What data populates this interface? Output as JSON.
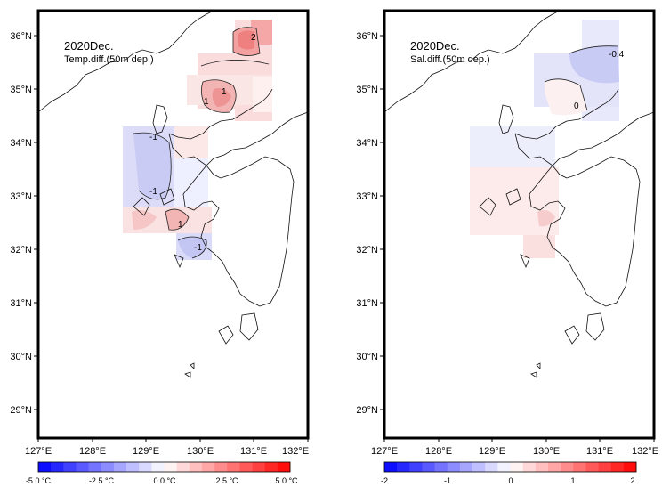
{
  "panels": [
    {
      "id": "temp",
      "title": "2020Dec.",
      "subtitle": "Temp.diff.(50m dep.)",
      "x_ticks": [
        "127°E",
        "128°E",
        "129°E",
        "130°E",
        "131°E",
        "132°E"
      ],
      "y_ticks": [
        "36°N",
        "35°N",
        "34°N",
        "33°N",
        "32°N",
        "31°N",
        "30°N",
        "29°N"
      ],
      "contour_labels": [
        "2",
        "1",
        "1",
        "-1",
        "-1",
        "1",
        "-1"
      ],
      "colorbar": {
        "labels": [
          "-5.0 °C",
          "-2.5 °C",
          "0.0 °C",
          "2.5 °C",
          "5.0 °C"
        ],
        "min_color": "#0000ff",
        "max_color": "#ff0000"
      }
    },
    {
      "id": "sal",
      "title": "2020Dec.",
      "subtitle": "Sal.diff.(50m dep.)",
      "x_ticks": [
        "127°E",
        "128°E",
        "129°E",
        "130°E",
        "131°E",
        "132°E"
      ],
      "y_ticks": [
        "36°N",
        "35°N",
        "34°N",
        "33°N",
        "32°N",
        "31°N",
        "30°N",
        "29°N"
      ],
      "contour_labels": [
        "-0.4",
        "0"
      ],
      "colorbar": {
        "labels": [
          "-2",
          "-1",
          "0",
          "1",
          "2"
        ],
        "min_color": "#0000ff",
        "max_color": "#ff0000"
      }
    }
  ]
}
